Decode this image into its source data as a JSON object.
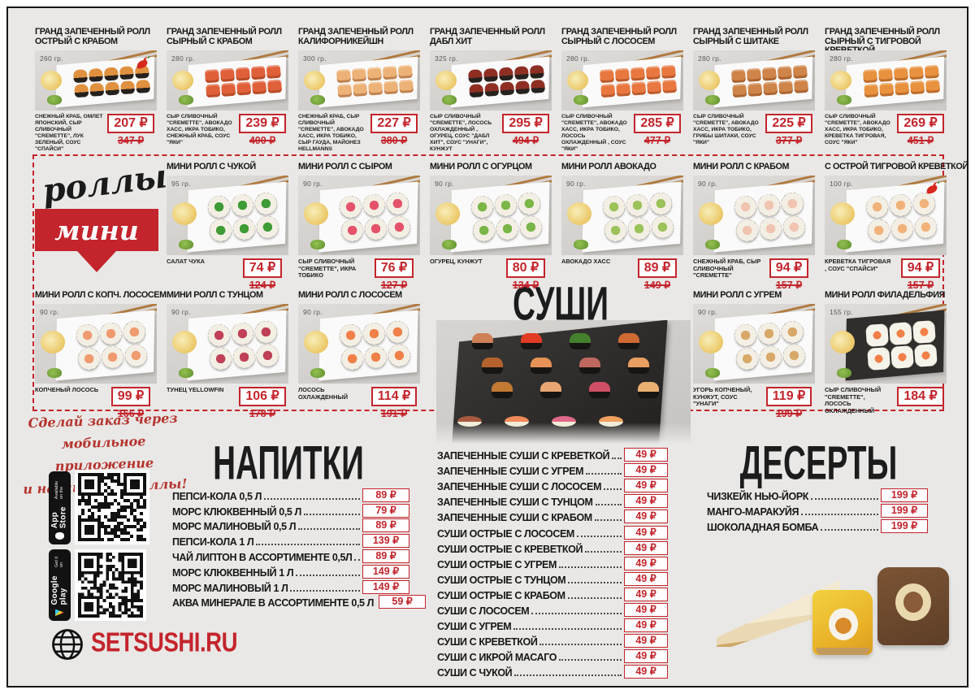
{
  "page": {
    "site": "SETSUSHI.RU",
    "accent_red": "#c4242c",
    "background": "#e9e8e6"
  },
  "ribbon": {
    "line1": "роллы",
    "line2": "мини"
  },
  "promo": {
    "lines": [
      "Сделай заказ через",
      "мобильное приложение",
      "и накапливай баллы!"
    ]
  },
  "store_badges": {
    "app_store_small": "Available on the",
    "app_store": "App Store",
    "google_play_small": "Get it on",
    "google_play": "Google play"
  },
  "grand_rolls": {
    "items": [
      {
        "title": "ГРАНД ЗАПЕЧЕННЫЙ РОЛЛ ОСТРЫЙ С КРАБОМ",
        "weight": "260 гр.",
        "desc": "СНЕЖНЫЙ КРАБ, ОМЛЕТ ЯПОНСКИЙ, СЫР СЛИВОЧНЫЙ \"CREMETTE\", ЛУК ЗЕЛЕНЫЙ, СОУС \"СПАЙСИ\"",
        "price": "207 ₽",
        "old_price": "347 ₽",
        "spicy": true,
        "photo": {
          "type": "gunkan",
          "color": "#e0913f",
          "plate": "white"
        }
      },
      {
        "title": "ГРАНД ЗАПЕЧЕННЫЙ РОЛЛ СЫРНЫЙ С КРАБОМ",
        "weight": "280 гр.",
        "desc": "СЫР СЛИВОЧНЫЙ \"CREMETTE\", АВОКАДО ХАСС, ИКРА ТОБИКО, СНЕЖНЫЙ КРАБ, СОУС \"ЯКИ\"",
        "price": "239 ₽",
        "old_price": "400 ₽",
        "spicy": false,
        "photo": {
          "type": "cube",
          "color": "#e0603a",
          "plate": "white"
        }
      },
      {
        "title": "ГРАНД ЗАПЕЧЕННЫЙ РОЛЛ КАЛИФОРНИКЕЙШН",
        "weight": "300 гр.",
        "desc": "СНЕЖНЫЙ КРАБ, СЫР СЛИВОЧНЫЙ \"CREMETTE\", АВОКАДО ХАСС, ИКРА ТОБИКО, СЫР ГАУДА, МАЙОНЕЗ HELLMANNS",
        "price": "227 ₽",
        "old_price": "380 ₽",
        "spicy": false,
        "photo": {
          "type": "cube",
          "color": "#edb277",
          "plate": "white"
        }
      },
      {
        "title": "ГРАНД ЗАПЕЧЕННЫЙ РОЛЛ ДАБЛ ХИТ",
        "weight": "325 гр.",
        "desc": "СЫР СЛИВОЧНЫЙ \"CREMETTE\", ЛОСОСЬ ОХЛАЖДЕННЫЙ , ОГУРЕЦ, СОУС \"ДАБЛ ХИТ\", СОУС \"УНАГИ\", КУНЖУТ",
        "price": "295 ₽",
        "old_price": "494 ₽",
        "spicy": false,
        "photo": {
          "type": "gunkan",
          "color": "#8f2f24",
          "plate": "white"
        }
      },
      {
        "title": "ГРАНД ЗАПЕЧЕННЫЙ РОЛЛ СЫРНЫЙ С ЛОСОСЕМ",
        "weight": "280 гр.",
        "desc": "СЫР СЛИВОЧНЫЙ \"CREMETTE\", АВОКАДО ХАСС, ИКРА ТОБИКО, ЛОСОСЬ ОХЛАЖДЕННЫЙ , СОУС \"ЯКИ\"",
        "price": "285 ₽",
        "old_price": "477 ₽",
        "spicy": false,
        "photo": {
          "type": "cube",
          "color": "#e87840",
          "plate": "white"
        }
      },
      {
        "title": "ГРАНД ЗАПЕЧЕННЫЙ РОЛЛ СЫРНЫЙ С ШИТАКЕ",
        "weight": "280 гр.",
        "desc": "СЫР СЛИВОЧНЫЙ \"CREMETTE\", АВОКАДО ХАСС, ИКРА ТОБИКО, ГРИБЫ ШИТАКИ, СОУС \"ЯКИ\"",
        "price": "225 ₽",
        "old_price": "377 ₽",
        "spicy": false,
        "photo": {
          "type": "cube",
          "color": "#cf8549",
          "plate": "white"
        }
      },
      {
        "title": "ГРАНД ЗАПЕЧЕННЫЙ РОЛЛ СЫРНЫЙ С ТИГРОВОЙ КРЕВЕТКОЙ",
        "weight": "280 гр.",
        "desc": "СЫР СЛИВОЧНЫЙ \"CREMETTE\", АВОКАДО ХАСС, ИКРА ТОБИКО, КРЕВЕТКА ТИГРОВАЯ, СОУС \"ЯКИ\"",
        "price": "269 ₽",
        "old_price": "451 ₽",
        "spicy": false,
        "photo": {
          "type": "cube",
          "color": "#e8923f",
          "plate": "white"
        }
      }
    ]
  },
  "mini_rolls_top": {
    "items": [
      {
        "title": "МИНИ РОЛЛ С ЧУКОЙ",
        "weight": "95 гр.",
        "desc": "САЛАТ ЧУКА",
        "price": "74 ₽",
        "old_price": "124 ₽",
        "spicy": false,
        "photo": {
          "type": "maki",
          "color": "#3f9b35",
          "plate": "white"
        }
      },
      {
        "title": "МИНИ РОЛЛ С СЫРОМ",
        "weight": "90 гр.",
        "desc": "СЫР СЛИВОЧНЫЙ \"CREMETTE\", ИКРА ТОБИКО",
        "price": "76 ₽",
        "old_price": "127 ₽",
        "spicy": false,
        "photo": {
          "type": "maki",
          "color": "#e5536a",
          "plate": "white"
        }
      },
      {
        "title": "МИНИ РОЛЛ С ОГУРЦОМ",
        "weight": "90 гр.",
        "desc": "ОГУРЕЦ, КУНЖУТ",
        "price": "80 ₽",
        "old_price": "134 ₽",
        "spicy": false,
        "photo": {
          "type": "maki",
          "color": "#7ab648",
          "plate": "white"
        }
      },
      {
        "title": "МИНИ РОЛЛ АВОКАДО",
        "weight": "90 гр.",
        "desc": "АВОКАДО ХАСС",
        "price": "89 ₽",
        "old_price": "149 ₽",
        "spicy": false,
        "photo": {
          "type": "maki",
          "color": "#9cc25a",
          "plate": "white"
        }
      },
      {
        "title": "МИНИ РОЛЛ С КРАБОМ",
        "weight": "90 гр.",
        "desc": "СНЕЖНЫЙ КРАБ, СЫР СЛИВОЧНЫЙ \"CREMETTE\"",
        "price": "94 ₽",
        "old_price": "157 ₽",
        "spicy": false,
        "photo": {
          "type": "maki",
          "color": "#f0c4b0",
          "plate": "white"
        }
      },
      {
        "title": "С ОСТРОЙ ТИГРОВОЙ КРЕВЕТКОЙ",
        "weight": "100 гр.",
        "desc": "КРЕВЕТКА ТИГРОВАЯ , СОУС \"СПАЙСИ\"",
        "price": "94 ₽",
        "old_price": "157 ₽",
        "spicy": true,
        "photo": {
          "type": "maki",
          "color": "#f0b27a",
          "plate": "white"
        }
      }
    ]
  },
  "mini_rolls_bottom_left": {
    "items": [
      {
        "title": "МИНИ РОЛЛ С КОПЧ. ЛОСОСЕМ",
        "weight": "90 гр.",
        "desc": "КОПЧЕНЫЙ ЛОСОСЬ",
        "price": "99 ₽",
        "old_price": "166 ₽",
        "spicy": false,
        "photo": {
          "type": "maki",
          "color": "#f09a70",
          "plate": "white"
        }
      },
      {
        "title": "МИНИ РОЛЛ С ТУНЦОМ",
        "weight": "90 гр.",
        "desc": "ТУНЕЦ YELLOWFIN",
        "price": "106 ₽",
        "old_price": "178 ₽",
        "spicy": false,
        "photo": {
          "type": "maki",
          "color": "#c04058",
          "plate": "white"
        }
      },
      {
        "title": "МИНИ РОЛЛ С ЛОСОСЕМ",
        "weight": "90 гр.",
        "desc": "ЛОСОСЬ ОХЛАЖДЕННЫЙ",
        "price": "114 ₽",
        "old_price": "191 ₽",
        "spicy": false,
        "photo": {
          "type": "maki",
          "color": "#f08048",
          "plate": "white"
        }
      }
    ]
  },
  "mini_rolls_bottom_right": {
    "items": [
      {
        "title": "МИНИ РОЛЛ С УГРЕМ",
        "weight": "90 гр.",
        "desc": "УГОРЬ КОПЧЕНЫЙ, КУНЖУТ, СОУС \"УНАГИ\"",
        "price": "119 ₽",
        "old_price": "199 ₽",
        "spicy": false,
        "photo": {
          "type": "maki",
          "color": "#d8a868",
          "plate": "white"
        }
      },
      {
        "title": "МИНИ РОЛЛ ФИЛАДЕЛЬФИЯ",
        "weight": "155 гр.",
        "desc": "СЫР СЛИВОЧНЫЙ \"CREMETTE\", ЛОСОСЬ ОХЛАЖДЕННЫЙ",
        "price": "184 ₽",
        "spicy": false,
        "photo": {
          "type": "phila",
          "color": "#f08048",
          "plate": "black"
        }
      }
    ]
  },
  "sushi": {
    "title": "СУШИ",
    "items": [
      {
        "label": "ЗАПЕЧЕННЫЕ СУШИ С КРЕВЕТКОЙ",
        "price": "49 ₽"
      },
      {
        "label": "ЗАПЕЧЕННЫЕ СУШИ С УГРЕМ",
        "price": "49 ₽"
      },
      {
        "label": "ЗАПЕЧЕННЫЕ СУШИ С ЛОСОСЕМ",
        "price": "49 ₽"
      },
      {
        "label": "ЗАПЕЧЕННЫЕ СУШИ С ТУНЦОМ",
        "price": "49 ₽"
      },
      {
        "label": "ЗАПЕЧЕННЫЕ СУШИ С КРАБОМ",
        "price": "49 ₽"
      },
      {
        "label": "СУШИ ОСТРЫЕ С ЛОСОСЕМ",
        "price": "49 ₽"
      },
      {
        "label": "СУШИ ОСТРЫЕ С КРЕВЕТКОЙ",
        "price": "49 ₽"
      },
      {
        "label": "СУШИ ОСТРЫЕ С УГРЕМ",
        "price": "49 ₽"
      },
      {
        "label": "СУШИ ОСТРЫЕ С ТУНЦОМ",
        "price": "49 ₽"
      },
      {
        "label": "СУШИ ОСТРЫЕ С КРАБОМ",
        "price": "49 ₽"
      },
      {
        "label": "СУШИ С ЛОСОСЕМ",
        "price": "49 ₽"
      },
      {
        "label": "СУШИ С УГРЕМ",
        "price": "49 ₽"
      },
      {
        "label": "СУШИ С КРЕВЕТКОЙ",
        "price": "49 ₽"
      },
      {
        "label": "СУШИ С ИКРОЙ МАСАГО",
        "price": "49 ₽"
      },
      {
        "label": "СУШИ С ЧУКОЙ",
        "price": "49 ₽"
      }
    ],
    "photo_gunkan_colors": [
      "#cf8057",
      "#e23b23",
      "#44802e",
      "#d06a33",
      "#b5622d",
      "#e79257",
      "#c0685f",
      "#e89f60",
      "#c27a33",
      "#e9a673",
      "#cf4f66",
      "#eab072"
    ],
    "photo_nigiri_colors": [
      "#a85a40",
      "#f08a5a",
      "#e06888",
      "#f0a05e"
    ]
  },
  "drinks": {
    "title": "НАПИТКИ",
    "items": [
      {
        "label": "ПЕПСИ-КОЛА  0,5 Л",
        "price": "89 ₽"
      },
      {
        "label": "МОРС КЛЮКВЕННЫЙ 0,5 Л",
        "price": "79 ₽"
      },
      {
        "label": "МОРС МАЛИНОВЫЙ 0,5 Л",
        "price": "89 ₽"
      },
      {
        "label": "ПЕПСИ-КОЛА 1 Л",
        "price": "139 ₽"
      },
      {
        "label": "ЧАЙ ЛИПТОН В АССОРТИМЕНТЕ 0,5Л",
        "price": "89 ₽"
      },
      {
        "label": "МОРС КЛЮКВЕННЫЙ 1 Л",
        "price": "149 ₽"
      },
      {
        "label": "МОРС МАЛИНОВЫЙ 1 Л",
        "price": "149 ₽"
      },
      {
        "label": "АКВА МИНЕРАЛЕ В АССОРТИМЕНТЕ 0,5 Л",
        "price": "59 ₽"
      }
    ]
  },
  "desserts": {
    "title": "ДЕСЕРТЫ",
    "items": [
      {
        "label": "ЧИЗКЕЙК НЬЮ-ЙОРК",
        "price": "199 ₽"
      },
      {
        "label": "МАНГО-МАРАКУЙЯ",
        "price": "199 ₽"
      },
      {
        "label": "ШОКОЛАДНАЯ  БОМБА",
        "price": "199 ₽"
      }
    ]
  }
}
